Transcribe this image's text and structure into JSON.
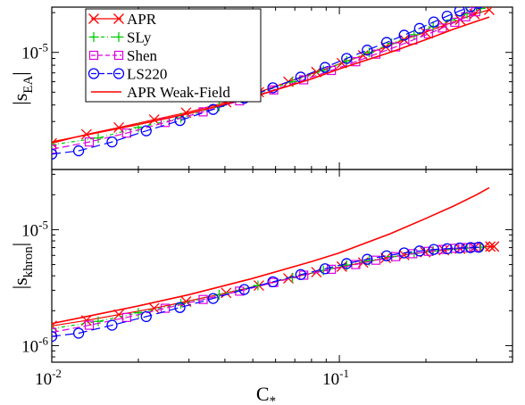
{
  "chart_data": [
    {
      "type": "line",
      "panel": "top",
      "ylabel_main": "|s",
      "ylabel_sub": "EA",
      "ylabel_end": "|",
      "xscale": "log",
      "yscale": "log",
      "xlim": [
        0.01,
        0.4
      ],
      "ylim": [
        1.3e-06,
        2.2e-05
      ],
      "yticks": [
        {
          "value": 1e-05,
          "base": "10",
          "exp": "-5"
        }
      ],
      "legend_position": "top-left",
      "grid": false,
      "series": [
        {
          "name": "APR",
          "color": "#ff0000",
          "marker": "x",
          "dash": "none",
          "x": [
            0.01,
            0.0132,
            0.0171,
            0.0227,
            0.0293,
            0.0404,
            0.0525,
            0.0665,
            0.0832,
            0.102,
            0.121,
            0.145,
            0.168,
            0.199,
            0.231,
            0.263,
            0.295,
            0.332
          ],
          "y": [
            2.05e-06,
            2.4e-06,
            2.7e-06,
            3.1e-06,
            3.5e-06,
            4.2e-06,
            5e-06,
            6e-06,
            7.1e-06,
            8.3e-06,
            9.5e-06,
            1.1e-05,
            1.25e-05,
            1.42e-05,
            1.6e-05,
            1.77e-05,
            1.95e-05,
            2.1e-05
          ]
        },
        {
          "name": "SLy",
          "color": "#00cc00",
          "marker": "+",
          "dash": "4,3,1,3",
          "x": [
            0.01,
            0.0145,
            0.02,
            0.0281,
            0.0382,
            0.0521,
            0.0686,
            0.088,
            0.106,
            0.127,
            0.152,
            0.182,
            0.212,
            0.245,
            0.278,
            0.31
          ],
          "y": [
            2e-06,
            2.25e-06,
            2.7e-06,
            3.2e-06,
            3.9e-06,
            4.9e-06,
            6e-06,
            7.3e-06,
            8.6e-06,
            1e-05,
            1.17e-05,
            1.36e-05,
            1.56e-05,
            1.76e-05,
            1.97e-05,
            2.15e-05
          ]
        },
        {
          "name": "Shen",
          "color": "#dd00dd",
          "marker": "square",
          "dash": "8,4",
          "x": [
            0.01,
            0.0135,
            0.0182,
            0.0248,
            0.0336,
            0.045,
            0.0591,
            0.0752,
            0.0938,
            0.114,
            0.134,
            0.157,
            0.18,
            0.204,
            0.228,
            0.252,
            0.275,
            0.298
          ],
          "y": [
            1.85e-06,
            2.1e-06,
            2.45e-06,
            2.95e-06,
            3.55e-06,
            4.3e-06,
            5.2e-06,
            6.2e-06,
            7.3e-06,
            8.5e-06,
            9.7e-06,
            1.1e-05,
            1.24e-05,
            1.38e-05,
            1.53e-05,
            1.69e-05,
            1.86e-05,
            2.03e-05
          ]
        },
        {
          "name": "LS220",
          "color": "#0000ff",
          "marker": "circle",
          "dash": "10,5",
          "x": [
            0.01,
            0.0124,
            0.0162,
            0.0213,
            0.0279,
            0.0364,
            0.0467,
            0.0587,
            0.0734,
            0.0892,
            0.106,
            0.125,
            0.146,
            0.168,
            0.19,
            0.213,
            0.237,
            0.262,
            0.286,
            0.305,
            0.31
          ],
          "y": [
            1.7e-06,
            1.8e-06,
            2.1e-06,
            2.55e-06,
            3.05e-06,
            3.7e-06,
            4.5e-06,
            5.4e-06,
            6.5e-06,
            7.7e-06,
            9e-06,
            1.04e-05,
            1.19e-05,
            1.35e-05,
            1.52e-05,
            1.7e-05,
            1.88e-05,
            2.06e-05,
            2.22e-05,
            2.35e-05,
            2.4e-05
          ]
        },
        {
          "name": "APR Weak-Field",
          "color": "#ff0000",
          "marker": "none",
          "dash": "none",
          "x": [
            0.01,
            0.02,
            0.03,
            0.05,
            0.08,
            0.1,
            0.15,
            0.2,
            0.25,
            0.3,
            0.332
          ],
          "y": [
            2.1e-06,
            2.85e-06,
            3.45e-06,
            4.6e-06,
            6.3e-06,
            7.5e-06,
            1e-05,
            1.25e-05,
            1.5e-05,
            1.72e-05,
            1.85e-05
          ]
        }
      ]
    },
    {
      "type": "line",
      "panel": "bottom",
      "ylabel_main": "|s",
      "ylabel_sub": "khron",
      "ylabel_end": "|",
      "xlabel_main": "C",
      "xlabel_sub": "*",
      "xscale": "log",
      "yscale": "log",
      "xlim": [
        0.01,
        0.4
      ],
      "ylim": [
        7.2e-07,
        3.3e-05
      ],
      "yticks": [
        {
          "value": 1e-06,
          "base": "10",
          "exp": "-6"
        },
        {
          "value": 1e-05,
          "base": "10",
          "exp": "-5"
        }
      ],
      "xticks": [
        {
          "value": 0.01,
          "base": "10",
          "exp": "-2"
        },
        {
          "value": 0.1,
          "base": "10",
          "exp": "-1"
        }
      ],
      "grid": false,
      "series": [
        {
          "name": "APR",
          "color": "#ff0000",
          "marker": "x",
          "dash": "none",
          "x": [
            0.01,
            0.0132,
            0.0171,
            0.0227,
            0.0293,
            0.0404,
            0.0525,
            0.0665,
            0.0832,
            0.102,
            0.121,
            0.145,
            0.168,
            0.199,
            0.231,
            0.263,
            0.295,
            0.32,
            0.335,
            0.345
          ],
          "y": [
            1.48e-06,
            1.65e-06,
            1.85e-06,
            2.1e-06,
            2.4e-06,
            2.85e-06,
            3.3e-06,
            3.8e-06,
            4.3e-06,
            4.8e-06,
            5.2e-06,
            5.7e-06,
            6.05e-06,
            6.4e-06,
            6.65e-06,
            6.85e-06,
            7e-06,
            7.1e-06,
            7.15e-06,
            7.15e-06
          ]
        },
        {
          "name": "SLy",
          "color": "#00cc00",
          "marker": "+",
          "dash": "4,3,1,3",
          "x": [
            0.01,
            0.0145,
            0.02,
            0.0281,
            0.0382,
            0.0521,
            0.0686,
            0.088,
            0.106,
            0.127,
            0.152,
            0.182,
            0.212,
            0.245,
            0.278,
            0.31
          ],
          "y": [
            1.4e-06,
            1.62e-06,
            1.92e-06,
            2.3e-06,
            2.75e-06,
            3.3e-06,
            3.85e-06,
            4.45e-06,
            4.95e-06,
            5.4e-06,
            5.85e-06,
            6.25e-06,
            6.55e-06,
            6.8e-06,
            6.95e-06,
            7.05e-06
          ]
        },
        {
          "name": "Shen",
          "color": "#dd00dd",
          "marker": "square",
          "dash": "8,4",
          "x": [
            0.01,
            0.0135,
            0.0182,
            0.0248,
            0.0336,
            0.045,
            0.0591,
            0.0752,
            0.0938,
            0.114,
            0.134,
            0.157,
            0.18,
            0.204,
            0.228,
            0.252,
            0.275,
            0.298
          ],
          "y": [
            1.3e-06,
            1.5e-06,
            1.75e-06,
            2.1e-06,
            2.5e-06,
            2.95e-06,
            3.5e-06,
            4.05e-06,
            4.55e-06,
            5e-06,
            5.45e-06,
            5.85e-06,
            6.2e-06,
            6.5e-06,
            6.75e-06,
            6.9e-06,
            7e-06,
            7.05e-06
          ]
        },
        {
          "name": "LS220",
          "color": "#0000ff",
          "marker": "circle",
          "dash": "10,5",
          "x": [
            0.01,
            0.0124,
            0.0162,
            0.0213,
            0.0279,
            0.0364,
            0.0467,
            0.0587,
            0.0734,
            0.0892,
            0.106,
            0.125,
            0.146,
            0.168,
            0.19,
            0.213,
            0.237,
            0.262,
            0.286,
            0.305
          ],
          "y": [
            1.2e-06,
            1.28e-06,
            1.5e-06,
            1.78e-06,
            2.13e-06,
            2.55e-06,
            3.05e-06,
            3.55e-06,
            4.1e-06,
            4.6e-06,
            5.1e-06,
            5.55e-06,
            5.95e-06,
            6.3e-06,
            6.55e-06,
            6.75e-06,
            6.85e-06,
            6.95e-06,
            7e-06,
            7.05e-06
          ]
        },
        {
          "name": "APR Weak-Field",
          "color": "#ff0000",
          "marker": "none",
          "dash": "none",
          "x": [
            0.01,
            0.015,
            0.02,
            0.03,
            0.05,
            0.08,
            0.1,
            0.15,
            0.2,
            0.25,
            0.3,
            0.332
          ],
          "y": [
            1.55e-06,
            1.9e-06,
            2.2e-06,
            2.75e-06,
            3.8e-06,
            5.3e-06,
            6.3e-06,
            9.2e-06,
            1.25e-05,
            1.6e-05,
            2e-05,
            2.3e-05
          ]
        }
      ]
    }
  ]
}
